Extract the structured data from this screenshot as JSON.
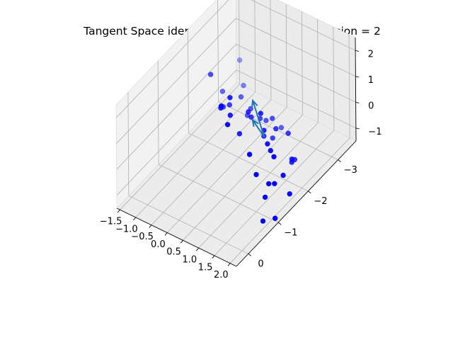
{
  "chart_data": {
    "type": "scatter",
    "projection": "3d",
    "title": "Tangent Space identified with effective dimension = 2",
    "xlabel": "",
    "ylabel": "",
    "zlabel": "",
    "xlim": [
      -1.6,
      2.2
    ],
    "ylim": [
      -3.6,
      0.4
    ],
    "zlim": [
      -1.5,
      2.5
    ],
    "x_ticks": [
      "−1.5",
      "−1.0",
      "−0.5",
      "0.0",
      "0.5",
      "1.0",
      "1.5",
      "2.0"
    ],
    "y_ticks": [
      "−3",
      "−2",
      "−1",
      "0"
    ],
    "z_ticks": [
      "−1",
      "0",
      "1",
      "2"
    ],
    "grid": true,
    "view": {
      "elevation_deg": 15,
      "azimuth_deg": -50
    },
    "colors": {
      "points": "#0000ff",
      "arrows": "#1f77b4",
      "pane_light": "#f2f2f2",
      "pane_dark": "#ebebeb",
      "grid": "#b0b0b0"
    },
    "points": [
      {
        "x": 0.6,
        "y": -0.8,
        "z": 2.3
      },
      {
        "x": -0.5,
        "y": -1.6,
        "z": 1.9
      },
      {
        "x": 0.4,
        "y": -1.3,
        "z": 1.9
      },
      {
        "x": 0.8,
        "y": -0.8,
        "z": 1.7
      },
      {
        "x": 0.2,
        "y": -1.2,
        "z": 1.5
      },
      {
        "x": 0.5,
        "y": -1.2,
        "z": 1.4
      },
      {
        "x": 0.0,
        "y": -1.7,
        "z": 0.9
      },
      {
        "x": 0.5,
        "y": -1.8,
        "z": 0.8
      },
      {
        "x": 0.8,
        "y": -1.9,
        "z": 0.8
      },
      {
        "x": -0.2,
        "y": -1.7,
        "z": 0.7
      },
      {
        "x": 0.6,
        "y": -1.4,
        "z": 0.5
      },
      {
        "x": 1.3,
        "y": -1.0,
        "z": 0.6
      },
      {
        "x": -0.7,
        "y": -2.2,
        "z": 0.4
      },
      {
        "x": 0.4,
        "y": -2.0,
        "z": 0.3
      },
      {
        "x": 0.9,
        "y": -1.9,
        "z": 0.2
      },
      {
        "x": 1.2,
        "y": -1.7,
        "z": 0.1
      },
      {
        "x": 1.7,
        "y": -0.8,
        "z": 0.3
      },
      {
        "x": -0.4,
        "y": -2.5,
        "z": 0.0
      },
      {
        "x": 0.0,
        "y": -2.4,
        "z": -0.1
      },
      {
        "x": 0.3,
        "y": -2.4,
        "z": -0.3
      },
      {
        "x": 0.8,
        "y": -2.0,
        "z": -0.2
      },
      {
        "x": 1.5,
        "y": -1.6,
        "z": -0.1
      },
      {
        "x": 2.0,
        "y": -0.9,
        "z": 0.0
      },
      {
        "x": 1.3,
        "y": -1.7,
        "z": -0.1
      },
      {
        "x": 1.0,
        "y": -2.6,
        "z": -0.7
      },
      {
        "x": 0.4,
        "y": -2.7,
        "z": -0.6
      },
      {
        "x": 0.8,
        "y": -2.4,
        "z": -0.4
      },
      {
        "x": 1.8,
        "y": -1.3,
        "z": -0.6
      },
      {
        "x": -1.3,
        "y": -3.4,
        "z": -0.2
      },
      {
        "x": -0.8,
        "y": -3.0,
        "z": -0.4
      },
      {
        "x": -0.2,
        "y": -2.5,
        "z": -0.6
      },
      {
        "x": 0.2,
        "y": -2.7,
        "z": -0.8
      },
      {
        "x": 0.6,
        "y": -2.5,
        "z": -1.0
      },
      {
        "x": 1.4,
        "y": -2.3,
        "z": -1.1
      },
      {
        "x": 1.5,
        "y": -1.3,
        "z": -1.3
      },
      {
        "x": 2.0,
        "y": -0.7,
        "z": -1.2
      },
      {
        "x": 1.6,
        "y": -1.8,
        "z": -1.0
      },
      {
        "x": 0.3,
        "y": -3.1,
        "z": -1.5
      },
      {
        "x": 1.3,
        "y": -2.4,
        "z": -1.4
      },
      {
        "x": 2.1,
        "y": -1.0,
        "z": -1.4
      },
      {
        "x": 1.2,
        "y": -2.6,
        "z": -1.6
      },
      {
        "x": 1.8,
        "y": -1.8,
        "z": -1.6
      }
    ],
    "tangent_vectors": [
      {
        "origin": [
          1.1,
          -1.7,
          0.3
        ],
        "vector": [
          -0.55,
          -0.2,
          0.85
        ]
      },
      {
        "origin": [
          1.1,
          -1.7,
          0.3
        ],
        "vector": [
          -0.8,
          -0.45,
          -0.35
        ]
      }
    ]
  }
}
